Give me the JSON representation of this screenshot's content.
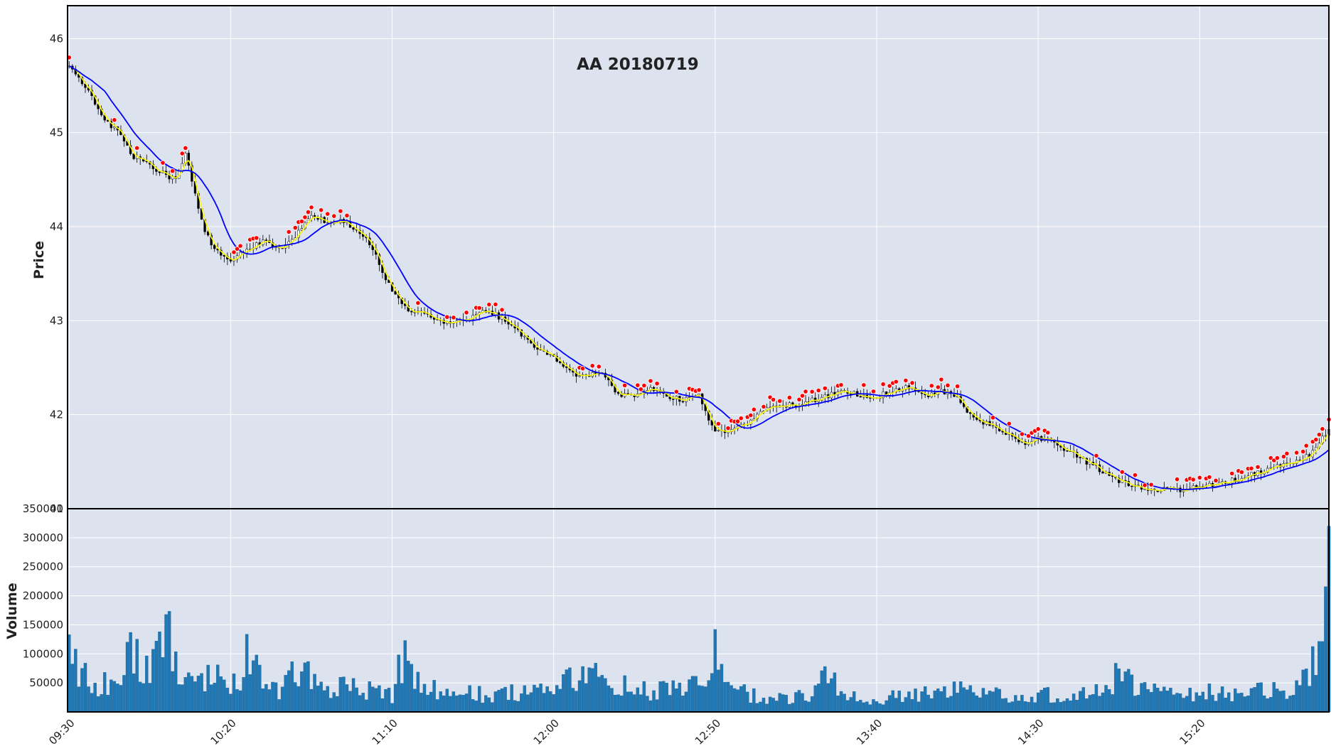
{
  "colors": {
    "panel_bg": "#DCE2EE",
    "grid": "#FFFFFF",
    "frame": "#000000",
    "candle_up": "#FFFFFF",
    "candle_down": "#000000",
    "candle_edge": "#000000",
    "volume_bar": "#1F77B4",
    "ma_fast": "#FFFF00",
    "ma_slow": "#0000FF",
    "marker_fill": "#FF0000",
    "marker_edge": "#FFFFFF"
  },
  "chart_data": {
    "type": "candlestick",
    "title": "AA 20180719",
    "price_panel": {
      "ylabel": "Price",
      "ylim": [
        41.0,
        46.35
      ],
      "yticks": [
        41,
        42,
        43,
        44,
        45,
        46
      ],
      "grid": true
    },
    "volume_panel": {
      "ylabel": "Volume",
      "ylim": [
        0,
        350000
      ],
      "yticks": [
        50000,
        100000,
        150000,
        200000,
        250000,
        300000,
        350000
      ],
      "grid": true
    },
    "x_axis": {
      "ticks": [
        "09:30",
        "10:20",
        "11:10",
        "12:00",
        "12:50",
        "13:40",
        "14:30",
        "15:20"
      ],
      "tick_interval_minutes": 50,
      "session_start": "09:30",
      "session_end": "16:00",
      "bar_interval_minutes": 1
    },
    "price_keypoints": [
      [
        "09:30",
        45.7
      ],
      [
        "09:35",
        45.5
      ],
      [
        "09:40",
        45.2
      ],
      [
        "09:45",
        45.0
      ],
      [
        "09:50",
        44.75
      ],
      [
        "09:55",
        44.65
      ],
      [
        "10:00",
        44.55
      ],
      [
        "10:03",
        44.5
      ],
      [
        "10:06",
        44.8
      ],
      [
        "10:09",
        44.35
      ],
      [
        "10:12",
        43.95
      ],
      [
        "10:15",
        43.75
      ],
      [
        "10:20",
        43.65
      ],
      [
        "10:25",
        43.75
      ],
      [
        "10:30",
        43.85
      ],
      [
        "10:35",
        43.75
      ],
      [
        "10:40",
        43.9
      ],
      [
        "10:45",
        44.1
      ],
      [
        "10:50",
        44.05
      ],
      [
        "10:55",
        44.05
      ],
      [
        "11:00",
        43.95
      ],
      [
        "11:05",
        43.7
      ],
      [
        "11:10",
        43.3
      ],
      [
        "11:15",
        43.1
      ],
      [
        "11:20",
        43.1
      ],
      [
        "11:25",
        43.0
      ],
      [
        "11:30",
        43.0
      ],
      [
        "11:35",
        43.05
      ],
      [
        "11:40",
        43.1
      ],
      [
        "11:45",
        43.0
      ],
      [
        "11:50",
        42.85
      ],
      [
        "11:55",
        42.7
      ],
      [
        "12:00",
        42.6
      ],
      [
        "12:05",
        42.45
      ],
      [
        "12:10",
        42.4
      ],
      [
        "12:15",
        42.45
      ],
      [
        "12:20",
        42.2
      ],
      [
        "12:25",
        42.2
      ],
      [
        "12:30",
        42.3
      ],
      [
        "12:35",
        42.2
      ],
      [
        "12:40",
        42.15
      ],
      [
        "12:45",
        42.2
      ],
      [
        "12:50",
        41.8
      ],
      [
        "12:55",
        41.85
      ],
      [
        "13:00",
        41.9
      ],
      [
        "13:05",
        42.05
      ],
      [
        "13:10",
        42.1
      ],
      [
        "13:15",
        42.1
      ],
      [
        "13:20",
        42.15
      ],
      [
        "13:25",
        42.2
      ],
      [
        "13:30",
        42.25
      ],
      [
        "13:35",
        42.2
      ],
      [
        "13:40",
        42.2
      ],
      [
        "13:45",
        42.25
      ],
      [
        "13:50",
        42.3
      ],
      [
        "13:55",
        42.2
      ],
      [
        "14:00",
        42.25
      ],
      [
        "14:05",
        42.2
      ],
      [
        "14:10",
        41.95
      ],
      [
        "14:15",
        41.9
      ],
      [
        "14:20",
        41.8
      ],
      [
        "14:25",
        41.7
      ],
      [
        "14:30",
        41.75
      ],
      [
        "14:35",
        41.7
      ],
      [
        "14:40",
        41.6
      ],
      [
        "14:45",
        41.5
      ],
      [
        "14:50",
        41.4
      ],
      [
        "14:55",
        41.3
      ],
      [
        "15:00",
        41.25
      ],
      [
        "15:05",
        41.2
      ],
      [
        "15:10",
        41.2
      ],
      [
        "15:15",
        41.2
      ],
      [
        "15:20",
        41.25
      ],
      [
        "15:25",
        41.25
      ],
      [
        "15:30",
        41.3
      ],
      [
        "15:35",
        41.35
      ],
      [
        "15:40",
        41.4
      ],
      [
        "15:45",
        41.45
      ],
      [
        "15:50",
        41.5
      ],
      [
        "15:55",
        41.6
      ],
      [
        "16:00",
        41.85
      ]
    ],
    "volume_keypoints": [
      [
        "09:30",
        160000
      ],
      [
        "09:33",
        80000
      ],
      [
        "09:38",
        40000
      ],
      [
        "09:45",
        80000
      ],
      [
        "09:50",
        110000
      ],
      [
        "09:55",
        80000
      ],
      [
        "10:00",
        150000
      ],
      [
        "10:05",
        80000
      ],
      [
        "10:10",
        60000
      ],
      [
        "10:15",
        70000
      ],
      [
        "10:20",
        50000
      ],
      [
        "10:25",
        100000
      ],
      [
        "10:30",
        60000
      ],
      [
        "10:35",
        40000
      ],
      [
        "10:40",
        90000
      ],
      [
        "10:45",
        60000
      ],
      [
        "10:50",
        35000
      ],
      [
        "10:55",
        50000
      ],
      [
        "11:00",
        50000
      ],
      [
        "11:05",
        40000
      ],
      [
        "11:10",
        30000
      ],
      [
        "11:12",
        120000
      ],
      [
        "11:15",
        80000
      ],
      [
        "11:20",
        50000
      ],
      [
        "11:30",
        40000
      ],
      [
        "11:40",
        30000
      ],
      [
        "11:50",
        40000
      ],
      [
        "12:00",
        45000
      ],
      [
        "12:10",
        70000
      ],
      [
        "12:20",
        50000
      ],
      [
        "12:30",
        40000
      ],
      [
        "12:40",
        40000
      ],
      [
        "12:48",
        60000
      ],
      [
        "12:50",
        110000
      ],
      [
        "12:55",
        40000
      ],
      [
        "13:00",
        35000
      ],
      [
        "13:10",
        25000
      ],
      [
        "13:20",
        30000
      ],
      [
        "13:25",
        70000
      ],
      [
        "13:30",
        30000
      ],
      [
        "13:40",
        25000
      ],
      [
        "13:50",
        30000
      ],
      [
        "14:00",
        35000
      ],
      [
        "14:05",
        40000
      ],
      [
        "14:10",
        40000
      ],
      [
        "14:20",
        35000
      ],
      [
        "14:30",
        30000
      ],
      [
        "14:40",
        35000
      ],
      [
        "14:50",
        40000
      ],
      [
        "14:55",
        80000
      ],
      [
        "15:00",
        40000
      ],
      [
        "15:10",
        35000
      ],
      [
        "15:20",
        40000
      ],
      [
        "15:30",
        30000
      ],
      [
        "15:40",
        45000
      ],
      [
        "15:45",
        40000
      ],
      [
        "15:50",
        50000
      ],
      [
        "15:55",
        100000
      ],
      [
        "15:58",
        150000
      ],
      [
        "15:59",
        205000
      ],
      [
        "16:00",
        320000
      ]
    ],
    "moving_averages": [
      {
        "color": "#FFFF00",
        "window": 3
      },
      {
        "color": "#0000FF",
        "window": 12
      }
    ],
    "markers": {
      "marker": "circle",
      "position": "above bar high",
      "color": "#FF0000"
    }
  }
}
